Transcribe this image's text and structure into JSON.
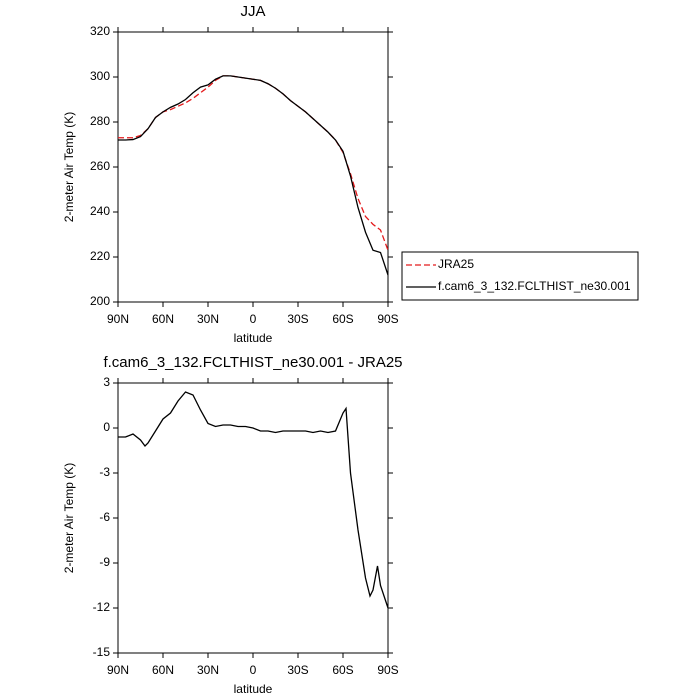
{
  "chart_data": [
    {
      "type": "line",
      "title": "JJA",
      "xlabel": "latitude",
      "ylabel": "2-meter Air Temp (K)",
      "x": [
        90,
        85,
        80,
        75,
        70,
        65,
        60,
        55,
        50,
        45,
        40,
        35,
        30,
        25,
        20,
        15,
        10,
        5,
        0,
        -5,
        -10,
        -15,
        -20,
        -25,
        -30,
        -35,
        -40,
        -45,
        -50,
        -55,
        -60,
        -65,
        -70,
        -75,
        -80,
        -85,
        -90
      ],
      "xlim": [
        90,
        -90
      ],
      "xticks": [
        {
          "value": 90,
          "label": "90N"
        },
        {
          "value": 60,
          "label": "60N"
        },
        {
          "value": 30,
          "label": "30N"
        },
        0,
        {
          "value": -30,
          "label": "30S"
        },
        {
          "value": -60,
          "label": "60S"
        },
        {
          "value": -90,
          "label": "90S"
        }
      ],
      "ylim": [
        200,
        320
      ],
      "yticks": [
        200,
        220,
        240,
        260,
        280,
        300,
        320
      ],
      "legend": "outside-right",
      "series": [
        {
          "name": "JRA25",
          "color": "#e41a1c",
          "style": "dashed",
          "values": [
            273,
            273,
            273,
            274,
            277,
            282,
            284.5,
            285.5,
            287,
            288.5,
            290.5,
            293,
            295.5,
            298.5,
            300.5,
            300.5,
            300,
            299.5,
            299,
            298.5,
            297,
            295,
            292.5,
            289.5,
            287,
            284.5,
            281.5,
            278.5,
            275.5,
            272,
            266.5,
            257,
            246,
            238,
            234.5,
            232,
            223
          ]
        },
        {
          "name": "f.cam6_3_132.FCLTHIST_ne30.001",
          "color": "#000000",
          "style": "solid",
          "values": [
            272,
            272,
            272.2,
            273.5,
            277,
            282,
            284.5,
            286.5,
            288,
            290,
            293,
            295.5,
            296.5,
            299,
            300.5,
            300.5,
            300,
            299.5,
            299,
            298.5,
            297,
            295,
            292.5,
            289.5,
            287,
            284.5,
            281.5,
            278.5,
            275.5,
            272,
            267,
            256,
            242,
            231,
            223,
            222,
            212
          ]
        }
      ]
    },
    {
      "type": "line",
      "title": "f.cam6_3_132.FCLTHIST_ne30.001 - JRA25",
      "xlabel": "latitude",
      "ylabel": "2-meter Air Temp (K)",
      "x": [
        90,
        85,
        80,
        75,
        72,
        70,
        65,
        60,
        55,
        50,
        45,
        40,
        35,
        30,
        25,
        20,
        15,
        10,
        5,
        0,
        -5,
        -10,
        -15,
        -20,
        -25,
        -30,
        -35,
        -40,
        -45,
        -50,
        -55,
        -60,
        -62,
        -65,
        -70,
        -75,
        -78,
        -80,
        -83,
        -85,
        -90
      ],
      "xlim": [
        90,
        -90
      ],
      "xticks": [
        {
          "value": 90,
          "label": "90N"
        },
        {
          "value": 60,
          "label": "60N"
        },
        {
          "value": 30,
          "label": "30N"
        },
        0,
        {
          "value": -30,
          "label": "30S"
        },
        {
          "value": -60,
          "label": "60S"
        },
        {
          "value": -90,
          "label": "90S"
        }
      ],
      "ylim": [
        -15,
        3
      ],
      "yticks": [
        -15,
        -12,
        -9,
        -6,
        -3,
        0,
        3
      ],
      "series": [
        {
          "color": "#000000",
          "style": "solid",
          "values": [
            -0.6,
            -0.6,
            -0.4,
            -0.8,
            -1.2,
            -1.0,
            -0.2,
            0.6,
            1.0,
            1.8,
            2.4,
            2.2,
            1.2,
            0.3,
            0.1,
            0.2,
            0.2,
            0.1,
            0.1,
            0,
            -0.2,
            -0.2,
            -0.3,
            -0.2,
            -0.2,
            -0.2,
            -0.2,
            -0.3,
            -0.2,
            -0.3,
            -0.2,
            1.0,
            1.3,
            -3.0,
            -6.8,
            -10.0,
            -11.2,
            -10.8,
            -9.2,
            -10.5,
            -12
          ]
        }
      ]
    }
  ]
}
